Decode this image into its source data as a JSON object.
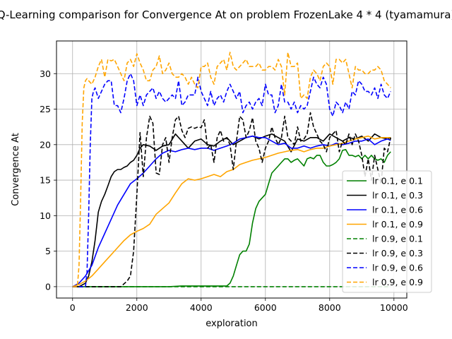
{
  "chart_data": {
    "type": "line",
    "title": "Q-Learning comparison for Convergence At on problem FrozenLake 4 * 4 (tyamamura)",
    "xlabel": "exploration",
    "ylabel": "Convergence At",
    "xlim": [
      -500,
      10400
    ],
    "ylim": [
      -1.6,
      34.6
    ],
    "xticks": [
      0,
      2000,
      4000,
      6000,
      8000,
      10000
    ],
    "yticks": [
      0,
      5,
      10,
      15,
      20,
      25,
      30
    ],
    "grid": true,
    "legend_position": "lower-right",
    "series": [
      {
        "name": "lr 0.1, e 0.1",
        "color": "#008000",
        "dash": "solid",
        "x": [
          0,
          1000,
          2000,
          3000,
          3400,
          4000,
          4600,
          4800,
          4900,
          5000,
          5100,
          5200,
          5300,
          5400,
          5500,
          5600,
          5700,
          5800,
          5900,
          6000,
          6100,
          6200,
          6300,
          6400,
          6500,
          6600,
          6700,
          6800,
          6900,
          7000,
          7100,
          7200,
          7300,
          7400,
          7500,
          7600,
          7700,
          7800,
          7900,
          8000,
          8100,
          8200,
          8300,
          8400,
          8500,
          8600,
          8700,
          8800,
          8900,
          9000,
          9100,
          9200,
          9300,
          9400,
          9500,
          9600,
          9700,
          9800,
          9900
        ],
        "y": [
          0,
          0,
          0,
          0,
          0.1,
          0.1,
          0.1,
          0.1,
          0.5,
          1.5,
          3.0,
          4.5,
          5.0,
          5.0,
          6.0,
          9.0,
          11.0,
          12.0,
          12.5,
          13.0,
          14.5,
          16.0,
          16.5,
          17.0,
          17.5,
          18.0,
          18.0,
          17.5,
          17.8,
          18.0,
          17.5,
          17.0,
          18.0,
          18.2,
          18.0,
          18.5,
          18.5,
          17.5,
          17.0,
          17.0,
          17.2,
          17.5,
          18.0,
          19.2,
          19.3,
          18.5,
          18.5,
          18.3,
          18.5,
          18.0,
          18.5,
          18.0,
          18.5,
          18.0,
          17.8,
          18.0,
          17.5,
          18.5,
          19.0
        ]
      },
      {
        "name": "lr 0.1, e 0.3",
        "color": "#000000",
        "dash": "solid",
        "x": [
          0,
          200,
          400,
          500,
          600,
          700,
          800,
          900,
          1000,
          1100,
          1200,
          1300,
          1400,
          1500,
          1600,
          1700,
          1800,
          1900,
          2000,
          2100,
          2200,
          2400,
          2600,
          2800,
          3000,
          3200,
          3400,
          3600,
          3800,
          4000,
          4200,
          4400,
          4600,
          4800,
          5000,
          5200,
          5400,
          5600,
          5800,
          6000,
          6200,
          6400,
          6600,
          6800,
          7000,
          7200,
          7400,
          7600,
          7800,
          8000,
          8200,
          8400,
          8600,
          8800,
          9000,
          9200,
          9400,
          9600,
          9800,
          9900
        ],
        "y": [
          0,
          0,
          0.5,
          1.5,
          3.5,
          6.5,
          10.5,
          12.0,
          13.0,
          14.2,
          15.5,
          16.2,
          16.5,
          16.5,
          16.8,
          17.0,
          17.5,
          17.8,
          18.5,
          19.5,
          20.0,
          19.8,
          19.2,
          19.8,
          20.0,
          21.5,
          20.5,
          19.5,
          20.5,
          20.8,
          20.0,
          19.8,
          20.5,
          21.0,
          20.0,
          20.5,
          21.0,
          21.2,
          20.8,
          21.2,
          21.5,
          21.0,
          20.5,
          19.0,
          20.8,
          20.5,
          21.0,
          21.0,
          20.5,
          21.5,
          21.0,
          20.5,
          21.0,
          20.8,
          21.2,
          20.5,
          21.5,
          21.0,
          20.8,
          21.0
        ]
      },
      {
        "name": "lr 0.1, e 0.6",
        "color": "#0000ff",
        "dash": "solid",
        "x": [
          0,
          200,
          400,
          600,
          800,
          1000,
          1200,
          1400,
          1600,
          1800,
          2000,
          2200,
          2400,
          2600,
          2800,
          3000,
          3200,
          3400,
          3600,
          3800,
          4000,
          4200,
          4400,
          4600,
          4800,
          5000,
          5200,
          5400,
          5600,
          5800,
          6000,
          6200,
          6400,
          6600,
          6800,
          7000,
          7200,
          7400,
          7600,
          7800,
          8000,
          8200,
          8400,
          8600,
          8800,
          9000,
          9200,
          9400,
          9600,
          9800,
          9900
        ],
        "y": [
          0,
          0.5,
          1.5,
          3.0,
          5.5,
          7.5,
          9.5,
          11.5,
          13.0,
          14.5,
          15.2,
          16.0,
          17.0,
          18.0,
          18.8,
          19.2,
          19.0,
          19.3,
          19.5,
          19.3,
          19.5,
          19.5,
          19.2,
          19.5,
          19.8,
          20.2,
          20.8,
          21.0,
          21.2,
          21.0,
          21.0,
          20.5,
          20.0,
          20.2,
          19.5,
          19.5,
          19.8,
          19.5,
          19.8,
          20.0,
          19.8,
          20.2,
          20.0,
          20.2,
          20.5,
          20.5,
          20.8,
          20.0,
          20.5,
          20.8,
          20.6
        ]
      },
      {
        "name": "lr 0.1, e 0.9",
        "color": "#ffa500",
        "dash": "solid",
        "x": [
          0,
          200,
          400,
          600,
          800,
          1000,
          1200,
          1400,
          1600,
          1800,
          2000,
          2200,
          2400,
          2600,
          2800,
          3000,
          3200,
          3400,
          3600,
          3800,
          4000,
          4200,
          4400,
          4600,
          4800,
          5000,
          5200,
          5400,
          5600,
          5800,
          6000,
          6200,
          6400,
          6600,
          6800,
          7000,
          7200,
          7400,
          7600,
          7800,
          8000,
          8200,
          8400,
          8600,
          8800,
          9000,
          9200,
          9400,
          9600,
          9800,
          9900
        ],
        "y": [
          0,
          0.3,
          0.8,
          1.5,
          2.5,
          3.5,
          4.5,
          5.5,
          6.5,
          7.3,
          7.8,
          8.2,
          8.8,
          10.2,
          11.0,
          11.8,
          13.2,
          14.5,
          15.2,
          15.0,
          15.2,
          15.5,
          15.8,
          15.5,
          16.2,
          16.5,
          17.2,
          17.5,
          17.8,
          18.0,
          18.2,
          18.5,
          18.8,
          19.0,
          19.2,
          19.3,
          19.0,
          19.3,
          19.5,
          19.5,
          19.8,
          20.0,
          20.2,
          20.5,
          20.8,
          21.0,
          21.2,
          20.8,
          21.0,
          21.0,
          21.0
        ]
      },
      {
        "name": "lr 0.9, e 0.1",
        "color": "#008000",
        "dash": "dashed",
        "x": [
          0,
          1000,
          2000,
          3000,
          4000,
          5000,
          6000,
          7000,
          8000,
          9000,
          9900
        ],
        "y": [
          0,
          0,
          0,
          0,
          0,
          0,
          0,
          0,
          0,
          0,
          0
        ]
      },
      {
        "name": "lr 0.9, e 0.3",
        "color": "#000000",
        "dash": "dashed",
        "x": [
          0,
          1000,
          1500,
          1700,
          1800,
          1900,
          2000,
          2100,
          2200,
          2300,
          2400,
          2500,
          2600,
          2700,
          2800,
          2900,
          3000,
          3100,
          3200,
          3300,
          3400,
          3500,
          3600,
          3700,
          3800,
          3900,
          4000,
          4100,
          4200,
          4300,
          4400,
          4500,
          4600,
          4700,
          4800,
          4900,
          5000,
          5100,
          5200,
          5300,
          5400,
          5500,
          5600,
          5700,
          5800,
          5900,
          6000,
          6100,
          6200,
          6300,
          6400,
          6500,
          6600,
          6700,
          6800,
          6900,
          7000,
          7100,
          7200,
          7300,
          7400,
          7500,
          7600,
          7700,
          7800,
          7900,
          8000,
          8100,
          8200,
          8300,
          8400,
          8500,
          8600,
          8700,
          8800,
          8900,
          9000,
          9100,
          9200,
          9300,
          9400,
          9500,
          9600,
          9700,
          9800,
          9900
        ],
        "y": [
          0,
          0,
          0,
          0.8,
          1.5,
          5.0,
          13.0,
          21.7,
          15.5,
          21.0,
          24.0,
          23.0,
          16.0,
          15.8,
          20.0,
          21.0,
          17.5,
          21.0,
          23.5,
          24.0,
          22.0,
          21.0,
          22.3,
          22.5,
          22.3,
          22.5,
          22.4,
          23.5,
          19.5,
          20.0,
          17.5,
          21.0,
          22.0,
          20.5,
          21.0,
          20.0,
          16.5,
          20.5,
          24.0,
          23.5,
          21.0,
          22.0,
          23.8,
          20.5,
          19.5,
          17.5,
          19.5,
          20.5,
          22.5,
          21.0,
          20.0,
          21.0,
          24.0,
          21.0,
          20.5,
          20.0,
          22.5,
          20.5,
          20.8,
          21.5,
          24.5,
          22.5,
          21.5,
          20.5,
          20.0,
          19.0,
          21.0,
          21.5,
          22.0,
          19.0,
          20.5,
          20.0,
          21.5,
          20.0,
          21.5,
          20.5,
          18.5,
          15.5,
          18.0,
          15.0,
          18.5,
          16.5,
          14.5,
          19.5,
          19.0,
          21.0
        ]
      },
      {
        "name": "lr 0.9, e 0.6",
        "color": "#0000ff",
        "dash": "dashed",
        "x": [
          0,
          400,
          450,
          500,
          550,
          600,
          650,
          700,
          800,
          900,
          1000,
          1100,
          1200,
          1300,
          1400,
          1500,
          1600,
          1700,
          1800,
          1900,
          2000,
          2100,
          2200,
          2300,
          2400,
          2500,
          2600,
          2700,
          2800,
          2900,
          3000,
          3100,
          3200,
          3300,
          3400,
          3500,
          3600,
          3700,
          3800,
          3900,
          4000,
          4100,
          4200,
          4300,
          4400,
          4500,
          4600,
          4700,
          4800,
          4900,
          5000,
          5100,
          5200,
          5300,
          5400,
          5500,
          5600,
          5700,
          5800,
          5900,
          6000,
          6100,
          6200,
          6300,
          6400,
          6500,
          6600,
          6700,
          6800,
          6900,
          7000,
          7100,
          7200,
          7300,
          7400,
          7500,
          7600,
          7700,
          7800,
          7900,
          8000,
          8100,
          8200,
          8300,
          8400,
          8500,
          8600,
          8700,
          8800,
          8900,
          9000,
          9100,
          9200,
          9300,
          9400,
          9500,
          9600,
          9700,
          9800,
          9900
        ],
        "y": [
          0,
          0,
          2.0,
          10.0,
          20.0,
          26.5,
          27.5,
          28.0,
          26.5,
          27.5,
          28.5,
          29.0,
          29.0,
          25.5,
          25.5,
          24.5,
          26.5,
          29.0,
          30.0,
          29.0,
          25.5,
          27.0,
          25.5,
          27.0,
          27.5,
          28.0,
          26.5,
          27.5,
          26.5,
          26.0,
          26.5,
          27.0,
          26.5,
          29.0,
          25.5,
          26.0,
          27.0,
          27.0,
          27.0,
          29.5,
          27.5,
          26.5,
          25.5,
          27.5,
          25.5,
          26.5,
          27.0,
          26.0,
          27.5,
          28.5,
          27.5,
          26.5,
          27.5,
          24.5,
          25.5,
          26.0,
          25.0,
          26.0,
          26.5,
          25.5,
          28.5,
          27.0,
          27.0,
          24.5,
          25.5,
          28.5,
          26.0,
          26.0,
          25.0,
          26.0,
          24.5,
          25.5,
          25.0,
          25.5,
          27.5,
          29.5,
          28.5,
          28.0,
          29.5,
          28.5,
          25.0,
          24.0,
          26.0,
          25.5,
          24.5,
          26.0,
          25.0,
          27.5,
          27.0,
          29.0,
          28.5,
          27.5,
          27.5,
          27.0,
          28.0,
          26.5,
          28.5,
          27.0,
          26.5,
          27.5
        ]
      },
      {
        "name": "lr 0.9, e 0.9",
        "color": "#ffa500",
        "dash": "dashed",
        "x": [
          0,
          150,
          200,
          250,
          300,
          350,
          400,
          450,
          500,
          600,
          700,
          800,
          900,
          1000,
          1100,
          1200,
          1300,
          1400,
          1500,
          1600,
          1700,
          1800,
          1900,
          2000,
          2100,
          2200,
          2300,
          2400,
          2500,
          2600,
          2700,
          2800,
          2900,
          3000,
          3100,
          3200,
          3300,
          3400,
          3500,
          3600,
          3700,
          3800,
          3900,
          4000,
          4100,
          4200,
          4300,
          4400,
          4500,
          4600,
          4700,
          4800,
          4900,
          5000,
          5100,
          5200,
          5300,
          5400,
          5500,
          5600,
          5700,
          5800,
          5900,
          6000,
          6100,
          6200,
          6300,
          6400,
          6500,
          6600,
          6700,
          6800,
          6900,
          7000,
          7100,
          7200,
          7300,
          7400,
          7500,
          7600,
          7700,
          7800,
          7900,
          8000,
          8100,
          8200,
          8300,
          8400,
          8500,
          8600,
          8700,
          8800,
          8900,
          9000,
          9100,
          9200,
          9300,
          9400,
          9500,
          9600,
          9700,
          9800,
          9900
        ],
        "y": [
          0,
          0,
          3.0,
          12.0,
          23.0,
          28.0,
          29.0,
          29.3,
          29.0,
          28.5,
          29.5,
          31.0,
          32.0,
          29.5,
          32.0,
          31.8,
          32.0,
          31.0,
          30.0,
          29.0,
          31.5,
          32.0,
          31.0,
          32.8,
          31.5,
          30.5,
          29.0,
          29.0,
          30.5,
          31.0,
          32.5,
          30.0,
          30.5,
          31.5,
          30.0,
          29.5,
          29.5,
          30.0,
          29.5,
          28.5,
          29.5,
          28.5,
          28.0,
          31.0,
          31.0,
          31.5,
          29.5,
          28.5,
          31.0,
          31.5,
          32.0,
          30.5,
          33.0,
          31.0,
          30.5,
          31.0,
          31.5,
          32.0,
          31.0,
          31.0,
          31.0,
          31.5,
          30.5,
          30.5,
          31.0,
          31.0,
          30.5,
          32.0,
          31.0,
          27.0,
          33.0,
          31.0,
          31.0,
          31.5,
          26.5,
          27.0,
          26.5,
          29.5,
          30.5,
          30.0,
          29.0,
          31.0,
          31.5,
          31.0,
          28.5,
          32.0,
          32.0,
          31.5,
          32.0,
          30.0,
          28.0,
          31.0,
          30.5,
          30.5,
          30.0,
          30.0,
          30.5,
          30.5,
          31.0,
          30.5,
          29.0,
          28.5,
          28.0
        ]
      }
    ]
  }
}
